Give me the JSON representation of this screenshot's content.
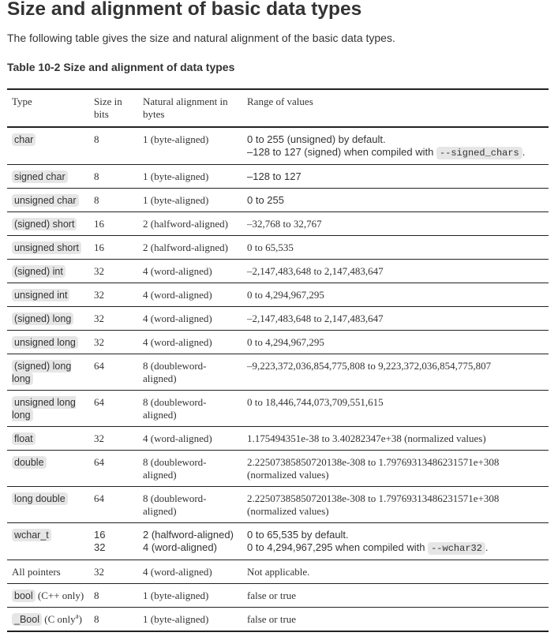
{
  "page": {
    "title": "Size and alignment of basic data types",
    "intro": "The following table gives the size and natural alignment of the basic data types.",
    "caption": "Table 10-2 Size and alignment of data types"
  },
  "table": {
    "headers": [
      "Type",
      "Size in bits",
      "Natural alignment in bytes",
      "Range of values"
    ],
    "rows": [
      {
        "type": "char",
        "bits": "8",
        "align": "1 (byte-aligned)",
        "range": "0 to 255 (unsigned) by default.",
        "range2_pre": "–128 to 127 (signed) when compiled with ",
        "range2_code": "--signed_chars",
        "range2_post": "."
      },
      {
        "type": "signed char",
        "bits": "8",
        "align": "1 (byte-aligned)",
        "range": "–128 to 127"
      },
      {
        "type": "unsigned char",
        "bits": "8",
        "align": "1 (byte-aligned)",
        "range": "0 to 255"
      },
      {
        "type": "(signed) short",
        "bits": "16",
        "align": "2 (halfword-aligned)",
        "range": "–32,768 to 32,767"
      },
      {
        "type": "unsigned short",
        "bits": "16",
        "align": "2 (halfword-aligned)",
        "range": "0 to 65,535"
      },
      {
        "type": "(signed) int",
        "bits": "32",
        "align": "4 (word-aligned)",
        "range": "–2,147,483,648 to 2,147,483,647"
      },
      {
        "type": "unsigned int",
        "bits": "32",
        "align": "4 (word-aligned)",
        "range": "0 to 4,294,967,295"
      },
      {
        "type": "(signed) long",
        "bits": "32",
        "align": "4 (word-aligned)",
        "range": "–2,147,483,648 to 2,147,483,647"
      },
      {
        "type": "unsigned long",
        "bits": "32",
        "align": "4 (word-aligned)",
        "range": "0 to 4,294,967,295"
      },
      {
        "type": "(signed) long long",
        "bits": "64",
        "align": "8 (doubleword-aligned)",
        "range": "–9,223,372,036,854,775,808 to 9,223,372,036,854,775,807"
      },
      {
        "type": "unsigned long long",
        "bits": "64",
        "align": "8 (doubleword-aligned)",
        "range": "0 to 18,446,744,073,709,551,615"
      },
      {
        "type": "float",
        "bits": "32",
        "align": "4 (word-aligned)",
        "range": "1.175494351e-38 to 3.40282347e+38 (normalized values)"
      },
      {
        "type": "double",
        "bits": "64",
        "align": "8 (doubleword-aligned)",
        "range": "2.22507385850720138e-308 to 1.79769313486231571e+308 (normalized values)"
      },
      {
        "type": "long double",
        "bits": "64",
        "align": "8 (doubleword-aligned)",
        "range": "2.22507385850720138e-308 to 1.79769313486231571e+308 (normalized values)"
      },
      {
        "type": "wchar_t",
        "bits": "16",
        "bits2": "32",
        "align": "2 (halfword-aligned)",
        "align2": "4 (word-aligned)",
        "range": "0 to 65,535 by default.",
        "range2_pre": "0 to 4,294,967,295 when compiled with ",
        "range2_code": "--wchar32",
        "range2_post": "."
      },
      {
        "type": "All pointers",
        "bits": "32",
        "align": "4 (word-aligned)",
        "range": "Not applicable."
      },
      {
        "type": "bool",
        "type_note": " (C++ only)",
        "bits": "8",
        "align": "1 (byte-aligned)",
        "range": "false or true"
      },
      {
        "type": "_Bool",
        "type_note": " (C only",
        "type_sup": "a",
        "type_note2": ")",
        "bits": "8",
        "align": "1 (byte-aligned)",
        "range": "false or true"
      }
    ]
  }
}
